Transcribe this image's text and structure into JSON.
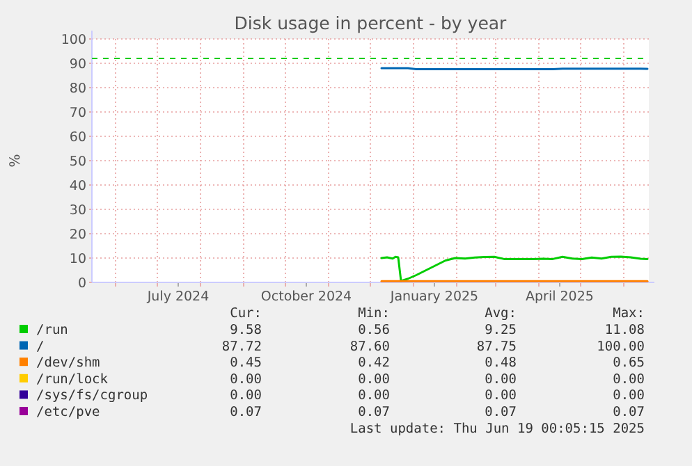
{
  "chart_data": {
    "type": "line",
    "title": "Disk usage in percent - by year",
    "ylabel": "%",
    "x": [
      "2024-12-09",
      "2024-12-13",
      "2024-12-17",
      "2024-12-19",
      "2024-12-21",
      "2024-12-23",
      "2024-12-28",
      "2025-01-03",
      "2025-01-10",
      "2025-01-17",
      "2025-01-24",
      "2025-01-31",
      "2025-02-07",
      "2025-02-14",
      "2025-02-21",
      "2025-02-28",
      "2025-03-07",
      "2025-03-14",
      "2025-03-21",
      "2025-03-28",
      "2025-04-04",
      "2025-04-11",
      "2025-04-18",
      "2025-04-25",
      "2025-05-02",
      "2025-05-09",
      "2025-05-16",
      "2025-05-23",
      "2025-05-30",
      "2025-06-06",
      "2025-06-13",
      "2025-06-18"
    ],
    "series": [
      {
        "name": "/run",
        "color": "#00cc00",
        "values": [
          10,
          10.3,
          9.8,
          10.5,
          10.3,
          0.6,
          1.5,
          3,
          5,
          7,
          9,
          10,
          9.8,
          10.2,
          10.4,
          10.5,
          9.6,
          9.6,
          9.6,
          9.6,
          9.7,
          9.6,
          10.5,
          9.8,
          9.6,
          10.2,
          9.8,
          10.5,
          10.6,
          10.3,
          9.7,
          9.6
        ]
      },
      {
        "name": "/",
        "color": "#0066b3",
        "values": [
          88,
          88,
          88,
          88,
          88,
          88,
          88,
          87.6,
          87.6,
          87.6,
          87.6,
          87.6,
          87.6,
          87.6,
          87.6,
          87.6,
          87.6,
          87.6,
          87.6,
          87.6,
          87.6,
          87.6,
          87.8,
          87.8,
          87.8,
          87.8,
          87.8,
          87.8,
          87.8,
          87.8,
          87.8,
          87.7
        ]
      },
      {
        "name": "/dev/shm",
        "color": "#ff8000",
        "values": [
          0.5,
          0.5,
          0.5,
          0.5,
          0.5,
          0.5,
          0.5,
          0.5,
          0.5,
          0.5,
          0.5,
          0.5,
          0.5,
          0.5,
          0.5,
          0.5,
          0.5,
          0.5,
          0.5,
          0.5,
          0.5,
          0.5,
          0.5,
          0.5,
          0.5,
          0.5,
          0.5,
          0.5,
          0.5,
          0.5,
          0.5,
          0.5
        ]
      },
      {
        "name": "/run/lock",
        "color": "#ffcc00",
        "values": [
          null,
          null,
          null,
          null,
          null,
          null,
          null,
          null,
          null,
          null,
          null,
          null,
          null,
          null,
          null,
          null,
          null,
          null,
          null,
          null,
          null,
          null,
          null,
          null,
          null,
          null,
          null,
          null,
          null,
          null,
          null,
          null
        ]
      },
      {
        "name": "/sys/fs/cgroup",
        "color": "#330099",
        "values": [
          null,
          null,
          null,
          null,
          null,
          null,
          null,
          null,
          null,
          null,
          null,
          null,
          null,
          null,
          null,
          null,
          null,
          null,
          null,
          null,
          null,
          null,
          null,
          null,
          null,
          null,
          null,
          null,
          null,
          null,
          null,
          null
        ]
      },
      {
        "name": "/etc/pve",
        "color": "#990099",
        "values": [
          null,
          null,
          null,
          null,
          null,
          null,
          null,
          null,
          null,
          null,
          null,
          null,
          null,
          null,
          null,
          null,
          null,
          null,
          null,
          null,
          null,
          null,
          null,
          null,
          null,
          null,
          null,
          null,
          null,
          null,
          null,
          null
        ]
      }
    ],
    "xlim": [
      "2024-05-15",
      "2025-06-19"
    ],
    "xticks": [
      {
        "value": "2024-06-01",
        "label": null
      },
      {
        "value": "2024-07-01",
        "label": null
      },
      {
        "value": "2024-07-16",
        "label": "July 2024"
      },
      {
        "value": "2024-08-01",
        "label": null
      },
      {
        "value": "2024-09-01",
        "label": null
      },
      {
        "value": "2024-10-01",
        "label": null
      },
      {
        "value": "2024-10-16",
        "label": "October 2024"
      },
      {
        "value": "2024-11-01",
        "label": null
      },
      {
        "value": "2024-12-01",
        "label": null
      },
      {
        "value": "2025-01-01",
        "label": null
      },
      {
        "value": "2025-01-16",
        "label": "January 2025"
      },
      {
        "value": "2025-02-01",
        "label": null
      },
      {
        "value": "2025-03-01",
        "label": null
      },
      {
        "value": "2025-04-01",
        "label": null
      },
      {
        "value": "2025-04-16",
        "label": "April 2025"
      },
      {
        "value": "2025-05-01",
        "label": null
      },
      {
        "value": "2025-06-01",
        "label": null
      }
    ],
    "ylim": [
      0,
      100
    ],
    "yticks": [
      0,
      10,
      20,
      30,
      40,
      50,
      60,
      70,
      80,
      90,
      100
    ],
    "grid": true,
    "legend": "bottom",
    "ref_lines": [
      {
        "axis": "y",
        "value": 92,
        "color": "#00cc00",
        "line_style": "dashed"
      }
    ],
    "annotations": [
      "Cur:",
      "Min:",
      "Avg:",
      "Max:",
      "9.58",
      "0.56",
      "9.25",
      "11.08",
      "87.72",
      "87.60",
      "87.75",
      "100.00",
      "0.45",
      "0.42",
      "0.48",
      "0.65",
      "0.00",
      "0.00",
      "0.00",
      "0.00",
      "0.00",
      "0.00",
      "0.00",
      "0.00",
      "0.07",
      "0.07",
      "0.07",
      "0.07",
      "Last update: Thu Jun 19 00:05:15 2025"
    ]
  }
}
